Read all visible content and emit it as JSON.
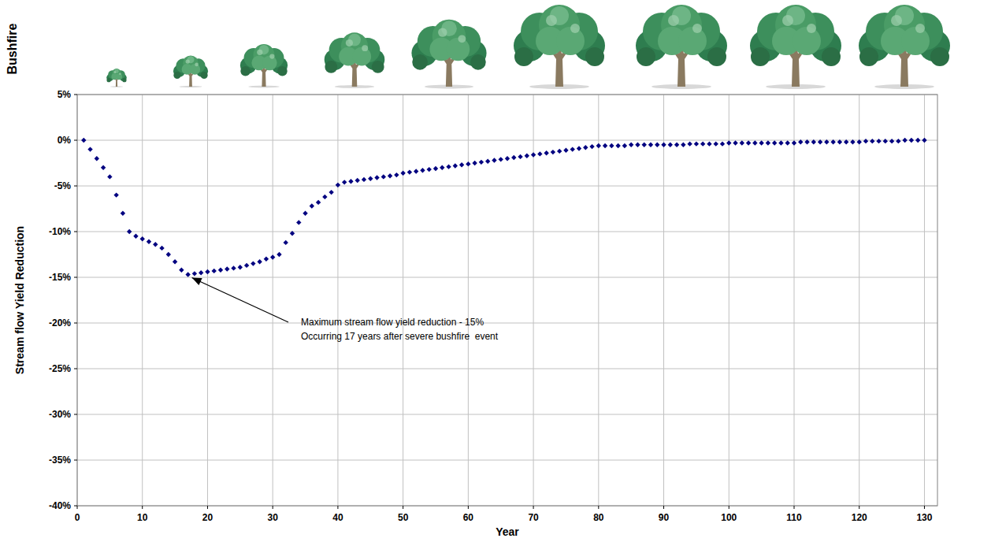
{
  "chart_data": {
    "type": "scatter",
    "side_label": "Bushfire",
    "y_label": "Stream flow Yield Reduction",
    "x_label": "Year",
    "annotation": [
      "Maximum stream flow yield reduction - 15%",
      "Occurring 17 years after severe bushfire  event"
    ],
    "color": "#000080",
    "marker": "diamond",
    "grid": true,
    "xlim": [
      0,
      132
    ],
    "ylim": [
      -40,
      5
    ],
    "xticks": [
      0,
      10,
      20,
      30,
      40,
      50,
      60,
      70,
      80,
      90,
      100,
      110,
      120,
      130
    ],
    "yticks": [
      {
        "value": 5,
        "label": "5%"
      },
      {
        "value": 0,
        "label": "0%"
      },
      {
        "value": -5,
        "label": "-5%"
      },
      {
        "value": -10,
        "label": "-10%"
      },
      {
        "value": -15,
        "label": "-15%"
      },
      {
        "value": -20,
        "label": "-20%"
      },
      {
        "value": -25,
        "label": "-25%"
      },
      {
        "value": -30,
        "label": "-30%"
      },
      {
        "value": -35,
        "label": "-35%"
      },
      {
        "value": -40,
        "label": "-40%"
      }
    ],
    "x": [
      1,
      2,
      3,
      4,
      5,
      6,
      7,
      8,
      9,
      10,
      11,
      12,
      13,
      14,
      15,
      16,
      17,
      18,
      19,
      20,
      21,
      22,
      23,
      24,
      25,
      26,
      27,
      28,
      29,
      30,
      31,
      32,
      33,
      34,
      35,
      36,
      37,
      38,
      39,
      40,
      41,
      42,
      43,
      44,
      45,
      46,
      47,
      48,
      49,
      50,
      51,
      52,
      53,
      54,
      55,
      56,
      57,
      58,
      59,
      60,
      61,
      62,
      63,
      64,
      65,
      66,
      67,
      68,
      69,
      70,
      71,
      72,
      73,
      74,
      75,
      76,
      77,
      78,
      79,
      80,
      81,
      82,
      83,
      84,
      85,
      86,
      87,
      88,
      89,
      90,
      91,
      92,
      93,
      94,
      95,
      96,
      97,
      98,
      99,
      100,
      101,
      102,
      103,
      104,
      105,
      106,
      107,
      108,
      109,
      110,
      111,
      112,
      113,
      114,
      115,
      116,
      117,
      118,
      119,
      120,
      121,
      122,
      123,
      124,
      125,
      126,
      127,
      128,
      129,
      130
    ],
    "values": [
      0,
      -1,
      -2,
      -3,
      -4,
      -6,
      -8,
      -10,
      -10.5,
      -10.8,
      -11.1,
      -11.4,
      -11.8,
      -12.5,
      -13.3,
      -14.2,
      -14.7,
      -14.6,
      -14.5,
      -14.4,
      -14.3,
      -14.2,
      -14.1,
      -14,
      -13.9,
      -13.7,
      -13.5,
      -13.3,
      -13,
      -12.8,
      -12.5,
      -11.2,
      -10.2,
      -9,
      -8,
      -7.2,
      -6.8,
      -6.2,
      -5.7,
      -4.9,
      -4.6,
      -4.5,
      -4.4,
      -4.3,
      -4.2,
      -4.1,
      -4,
      -3.9,
      -3.8,
      -3.6,
      -3.5,
      -3.4,
      -3.3,
      -3.2,
      -3.1,
      -3,
      -2.9,
      -2.8,
      -2.7,
      -2.6,
      -2.5,
      -2.4,
      -2.3,
      -2.2,
      -2.1,
      -2,
      -1.9,
      -1.8,
      -1.7,
      -1.6,
      -1.5,
      -1.4,
      -1.3,
      -1.2,
      -1.1,
      -1,
      -0.9,
      -0.8,
      -0.7,
      -0.6,
      -0.6,
      -0.6,
      -0.6,
      -0.6,
      -0.5,
      -0.5,
      -0.5,
      -0.5,
      -0.5,
      -0.5,
      -0.5,
      -0.5,
      -0.5,
      -0.4,
      -0.4,
      -0.4,
      -0.4,
      -0.4,
      -0.4,
      -0.3,
      -0.3,
      -0.3,
      -0.3,
      -0.3,
      -0.3,
      -0.3,
      -0.3,
      -0.3,
      -0.3,
      -0.3,
      -0.2,
      -0.2,
      -0.2,
      -0.2,
      -0.2,
      -0.2,
      -0.2,
      -0.2,
      -0.2,
      -0.2,
      -0.1,
      -0.1,
      -0.1,
      -0.1,
      -0.1,
      -0.1,
      0,
      0,
      0,
      0
    ]
  }
}
